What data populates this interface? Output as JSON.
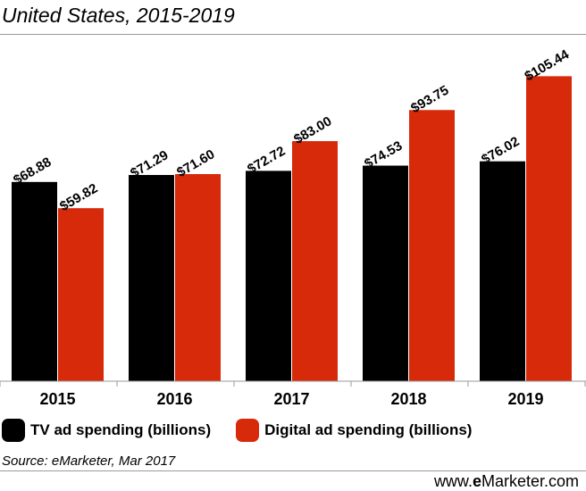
{
  "subtitle": "United States, 2015-2019",
  "source": "Source: eMarketer, Mar 2017",
  "brand": {
    "prefix": "www.",
    "bold": "e",
    "suffix": "Marketer.com"
  },
  "colors": {
    "tv": "#000000",
    "digital": "#d62a0a",
    "axis": "#9a9a9a"
  },
  "chart_data": {
    "type": "bar",
    "categories": [
      "2015",
      "2016",
      "2017",
      "2018",
      "2019"
    ],
    "series": [
      {
        "name": "TV ad spending (billions)",
        "values": [
          68.88,
          71.29,
          72.72,
          74.53,
          76.02
        ],
        "labels": [
          "$68.88",
          "$71.29",
          "$72.72",
          "$74.53",
          "$76.02"
        ]
      },
      {
        "name": "Digital ad spending (billions)",
        "values": [
          59.82,
          71.6,
          83.0,
          93.75,
          105.44
        ],
        "labels": [
          "$59.82",
          "$71.60",
          "$83.00",
          "$93.75",
          "$105.44"
        ]
      }
    ],
    "ylim": [
      0,
      120
    ],
    "grid": false,
    "legend_position": "bottom-left"
  }
}
